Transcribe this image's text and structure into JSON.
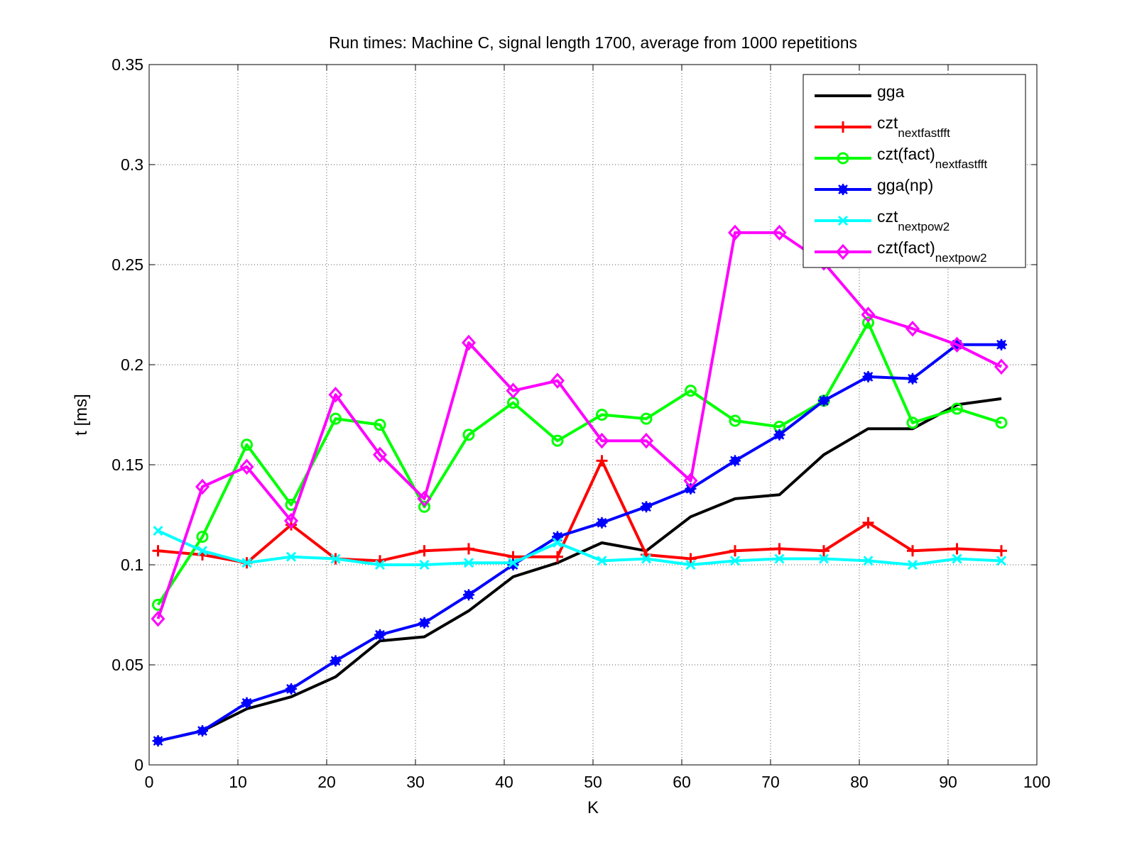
{
  "chart_data": {
    "type": "line",
    "title": "Run times: Machine C, signal length 1700, average from 1000 repetitions",
    "xlabel": "K",
    "ylabel": "t [ms]",
    "xlim": [
      0,
      100
    ],
    "ylim": [
      0,
      0.35
    ],
    "x_ticks": [
      0,
      10,
      20,
      30,
      40,
      50,
      60,
      70,
      80,
      90,
      100
    ],
    "y_ticks": [
      0,
      0.05,
      0.1,
      0.15,
      0.2,
      0.25,
      0.3,
      0.35
    ],
    "x_tick_labels": [
      "0",
      "10",
      "20",
      "30",
      "40",
      "50",
      "60",
      "70",
      "80",
      "90",
      "100"
    ],
    "y_tick_labels": [
      "0",
      "0.05",
      "0.1",
      "0.15",
      "0.2",
      "0.25",
      "0.3",
      "0.35"
    ],
    "grid": true,
    "legend_position": "top-right",
    "x": [
      1,
      6,
      11,
      16,
      21,
      26,
      31,
      36,
      41,
      46,
      51,
      56,
      61,
      66,
      71,
      76,
      81,
      86,
      91,
      96
    ],
    "series": [
      {
        "name": "gga",
        "name_sub": "",
        "color": "#000000",
        "marker": "none",
        "values": [
          0.012,
          0.017,
          0.028,
          0.034,
          0.044,
          0.062,
          0.064,
          0.077,
          0.094,
          0.101,
          0.111,
          0.107,
          0.124,
          0.133,
          0.135,
          0.155,
          0.168,
          0.168,
          0.18,
          0.183
        ]
      },
      {
        "name": "czt",
        "name_sub": "nextfastfft",
        "color": "#ff0000",
        "marker": "plus",
        "values": [
          0.107,
          0.105,
          0.101,
          0.12,
          0.103,
          0.102,
          0.107,
          0.108,
          0.104,
          0.104,
          0.152,
          0.105,
          0.103,
          0.107,
          0.108,
          0.107,
          0.121,
          0.107,
          0.108,
          0.107
        ]
      },
      {
        "name": "czt(fact)",
        "name_sub": "nextfastfft",
        "color": "#00ff00",
        "marker": "circle",
        "values": [
          0.08,
          0.114,
          0.16,
          0.13,
          0.173,
          0.17,
          0.129,
          0.165,
          0.181,
          0.162,
          0.175,
          0.173,
          0.187,
          0.172,
          0.169,
          0.182,
          0.221,
          0.171,
          0.178,
          0.171
        ]
      },
      {
        "name": "gga(np)",
        "name_sub": "",
        "color": "#0000ff",
        "marker": "asterisk",
        "values": [
          0.012,
          0.017,
          0.031,
          0.038,
          0.052,
          0.065,
          0.071,
          0.085,
          0.1,
          0.114,
          0.121,
          0.129,
          0.138,
          0.152,
          0.165,
          0.182,
          0.194,
          0.193,
          0.21,
          0.21
        ]
      },
      {
        "name": "czt",
        "name_sub": "nextpow2",
        "color": "#00ffff",
        "marker": "cross",
        "values": [
          0.117,
          0.107,
          0.101,
          0.104,
          0.103,
          0.1,
          0.1,
          0.101,
          0.101,
          0.111,
          0.102,
          0.103,
          0.1,
          0.102,
          0.103,
          0.103,
          0.102,
          0.1,
          0.103,
          0.102
        ]
      },
      {
        "name": "czt(fact)",
        "name_sub": "nextpow2",
        "color": "#ff00ff",
        "marker": "diamond",
        "values": [
          0.073,
          0.139,
          0.149,
          0.122,
          0.185,
          0.155,
          0.133,
          0.211,
          0.187,
          0.192,
          0.162,
          0.162,
          0.142,
          0.266,
          0.266,
          0.251,
          0.225,
          0.218,
          0.21,
          0.199
        ]
      }
    ]
  }
}
